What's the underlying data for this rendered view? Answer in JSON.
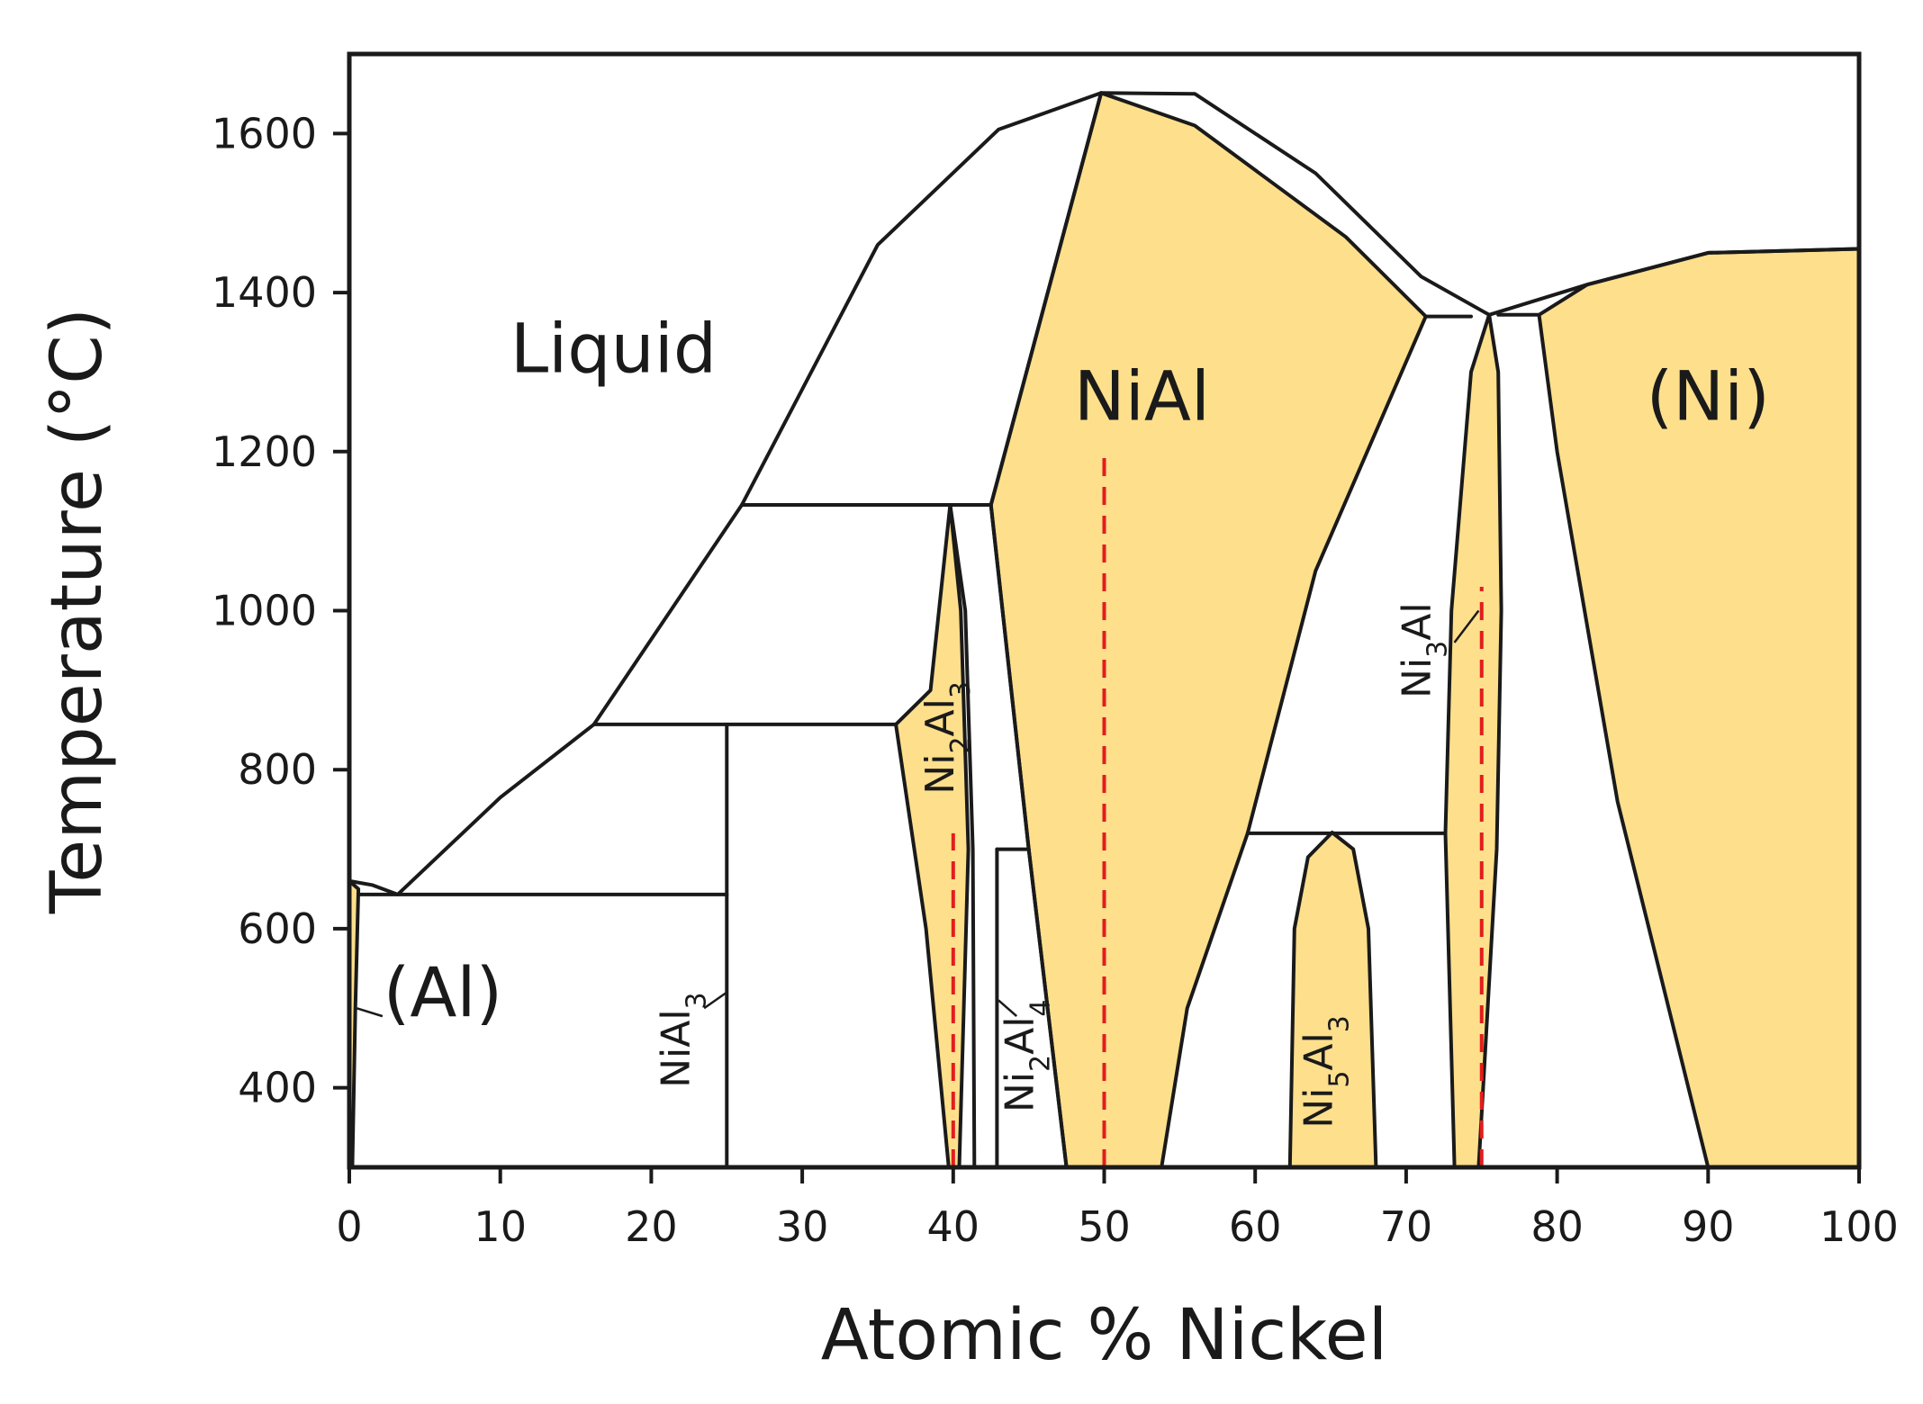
{
  "chart_data": {
    "type": "phase-diagram",
    "xlabel": "Atomic % Nickel",
    "ylabel": "Temperature (°C)",
    "xlim": [
      0,
      100
    ],
    "ylim": [
      300,
      1700
    ],
    "x_ticks": [
      0,
      10,
      20,
      30,
      40,
      50,
      60,
      70,
      80,
      90,
      100
    ],
    "y_ticks": [
      400,
      600,
      800,
      1000,
      1200,
      1400,
      1600
    ],
    "colors": {
      "single_phase_fill": "#fddf8c",
      "line": "#1a1a1a",
      "stoichiometry_marker": "#e21d1d"
    },
    "phases": [
      {
        "id": "liquid",
        "label": "Liquid",
        "label_at": [
          17.5,
          1300
        ],
        "label_size": "big",
        "rotated": false
      },
      {
        "id": "nial",
        "label": "NiAl",
        "label_at": [
          52.5,
          1240
        ],
        "label_size": "big",
        "rotated": false
      },
      {
        "id": "ni",
        "label": "(Ni)",
        "label_at": [
          90,
          1240
        ],
        "label_size": "big",
        "rotated": false
      },
      {
        "id": "al",
        "label": "(Al)",
        "label_at": [
          6.2,
          490
        ],
        "label_size": "big",
        "rotated": false
      },
      {
        "id": "nial3",
        "label": "NiAl",
        "subscript": "3",
        "label_at": [
          22.5,
          460
        ],
        "label_size": "small",
        "rotated": true
      },
      {
        "id": "ni2al3",
        "label": "Ni",
        "subscript": "2",
        "label2": "Al",
        "subscript2": "3",
        "label_at": [
          40,
          840
        ],
        "label_size": "small",
        "rotated": true
      },
      {
        "id": "ni2al4",
        "label": "Ni",
        "subscript": "2",
        "label2": "Al",
        "subscript2": "4",
        "label_at": [
          45.3,
          440
        ],
        "label_size": "small",
        "rotated": true
      },
      {
        "id": "ni5al3",
        "label": "Ni",
        "subscript": "5",
        "label2": "Al",
        "subscript2": "3",
        "label_at": [
          65.1,
          420
        ],
        "label_size": "small",
        "rotated": true
      },
      {
        "id": "ni3al",
        "label": "Ni",
        "subscript": "3",
        "label2": "Al",
        "label_at": [
          71.6,
          950
        ],
        "label_size": "small",
        "rotated": true
      }
    ],
    "shaded_regions": [
      {
        "id": "al-solid",
        "points": [
          [
            0,
            300
          ],
          [
            0,
            660
          ],
          [
            0.6,
            650
          ],
          [
            0.4,
            500
          ],
          [
            0.2,
            300
          ]
        ]
      },
      {
        "id": "ni2al3-region",
        "points": [
          [
            39.8,
            1133
          ],
          [
            38.5,
            900
          ],
          [
            36.2,
            857
          ],
          [
            38.2,
            600
          ],
          [
            39.7,
            300
          ],
          [
            40.4,
            300
          ],
          [
            41.0,
            700
          ],
          [
            40.5,
            1000
          ],
          [
            39.8,
            1133
          ]
        ]
      },
      {
        "id": "nial-region",
        "points": [
          [
            49.8,
            1651
          ],
          [
            42.5,
            1133
          ],
          [
            45.0,
            700
          ],
          [
            47.5,
            300
          ],
          [
            53.8,
            300
          ],
          [
            55.5,
            500
          ],
          [
            59.5,
            720
          ],
          [
            64,
            1050
          ],
          [
            71.3,
            1370
          ],
          [
            66,
            1470
          ],
          [
            56,
            1610
          ],
          [
            49.8,
            1651
          ]
        ]
      },
      {
        "id": "ni5al3-region",
        "points": [
          [
            62.3,
            300
          ],
          [
            62.6,
            600
          ],
          [
            63.5,
            690
          ],
          [
            65.1,
            721
          ],
          [
            66.5,
            700
          ],
          [
            67.5,
            600
          ],
          [
            68.0,
            300
          ]
        ]
      },
      {
        "id": "ni3al-region",
        "points": [
          [
            75.5,
            1372
          ],
          [
            74.3,
            1300
          ],
          [
            73,
            1000
          ],
          [
            72.6,
            720
          ],
          [
            73.2,
            300
          ],
          [
            74.8,
            300
          ],
          [
            76.0,
            700
          ],
          [
            76.3,
            1000
          ],
          [
            76.1,
            1300
          ],
          [
            75.5,
            1372
          ]
        ]
      },
      {
        "id": "ni-region",
        "points": [
          [
            78.8,
            1372
          ],
          [
            82,
            1410
          ],
          [
            90,
            1450
          ],
          [
            100,
            1455
          ],
          [
            100,
            300
          ],
          [
            90,
            300
          ],
          [
            84,
            760
          ],
          [
            80,
            1200
          ],
          [
            78.8,
            1372
          ]
        ]
      }
    ],
    "boundaries": [
      {
        "id": "liquidus-left",
        "points": [
          [
            0,
            660
          ],
          [
            1.5,
            655
          ],
          [
            3.2,
            643
          ],
          [
            10,
            765
          ],
          [
            16.2,
            857
          ],
          [
            26,
            1133
          ],
          [
            35,
            1460
          ],
          [
            43,
            1605
          ],
          [
            49.8,
            1651
          ]
        ]
      },
      {
        "id": "liquidus-right",
        "points": [
          [
            49.8,
            1651
          ],
          [
            56,
            1650
          ],
          [
            64,
            1550
          ],
          [
            71,
            1420
          ],
          [
            75.5,
            1372
          ],
          [
            82,
            1410
          ],
          [
            90,
            1450
          ],
          [
            100,
            1455
          ]
        ]
      },
      {
        "id": "tie-1133",
        "points": [
          [
            26,
            1133
          ],
          [
            42.5,
            1133
          ]
        ]
      },
      {
        "id": "tie-857",
        "points": [
          [
            16.2,
            857
          ],
          [
            36.2,
            857
          ]
        ]
      },
      {
        "id": "tie-640",
        "points": [
          [
            0.6,
            643
          ],
          [
            25,
            643
          ]
        ]
      },
      {
        "id": "tie-700",
        "points": [
          [
            42.9,
            700
          ],
          [
            45.0,
            700
          ]
        ]
      },
      {
        "id": "tie-720",
        "points": [
          [
            59.5,
            720
          ],
          [
            72.6,
            720
          ]
        ]
      },
      {
        "id": "tie-1370",
        "points": [
          [
            71.3,
            1370
          ],
          [
            74.3,
            1370
          ]
        ]
      },
      {
        "id": "tie-1372",
        "points": [
          [
            76.1,
            1372
          ],
          [
            78.8,
            1372
          ]
        ]
      },
      {
        "id": "nial3-line",
        "points": [
          [
            25,
            300
          ],
          [
            25,
            857
          ]
        ]
      },
      {
        "id": "ni2al4-line",
        "points": [
          [
            42.9,
            300
          ],
          [
            42.9,
            700
          ]
        ]
      },
      {
        "id": "nial-left-low",
        "points": [
          [
            41.4,
            300
          ],
          [
            41.3,
            700
          ],
          [
            40.8,
            1000
          ],
          [
            39.8,
            1133
          ]
        ]
      },
      {
        "id": "nial-left",
        "points": [
          [
            49.8,
            1651
          ],
          [
            42.5,
            1133
          ],
          [
            45.0,
            700
          ],
          [
            47.5,
            300
          ]
        ]
      }
    ],
    "stoichiometry_markers": [
      {
        "x": 40,
        "y_from": 300,
        "y_to": 720
      },
      {
        "x": 50,
        "y_from": 300,
        "y_to": 1200
      },
      {
        "x": 75,
        "y_from": 300,
        "y_to": 1030
      }
    ],
    "leaders": [
      {
        "from": [
          2.2,
          490
        ],
        "to": [
          0.5,
          500
        ]
      },
      {
        "from": [
          23.5,
          500
        ],
        "to": [
          25,
          520
        ]
      },
      {
        "from": [
          44.2,
          490
        ],
        "to": [
          43.0,
          510
        ]
      },
      {
        "from": [
          73.2,
          960
        ],
        "to": [
          74.8,
          1000
        ]
      }
    ]
  }
}
